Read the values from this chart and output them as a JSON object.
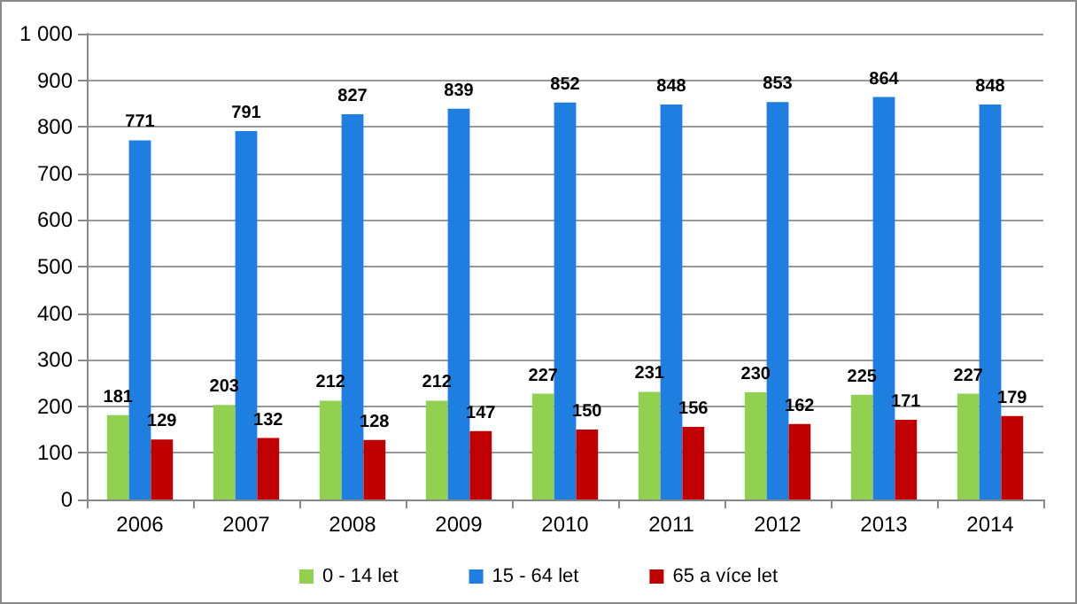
{
  "chart_data": {
    "type": "bar",
    "categories": [
      "2006",
      "2007",
      "2008",
      "2009",
      "2010",
      "2011",
      "2012",
      "2013",
      "2014"
    ],
    "series": [
      {
        "name": "0 - 14 let",
        "color": "#92d050",
        "values": [
          181,
          203,
          212,
          212,
          227,
          231,
          230,
          225,
          227
        ]
      },
      {
        "name": "15 - 64 let",
        "color": "#1e7fe0",
        "values": [
          771,
          791,
          827,
          839,
          852,
          848,
          853,
          864,
          848
        ]
      },
      {
        "name": "65 a více let",
        "color": "#c00000",
        "values": [
          129,
          132,
          128,
          147,
          150,
          156,
          162,
          171,
          179
        ]
      }
    ],
    "ylim": [
      0,
      1000
    ],
    "yticks": [
      0,
      100,
      200,
      300,
      400,
      500,
      600,
      700,
      800,
      900,
      {
        "value": 1000,
        "label": "1 000"
      }
    ],
    "grid": "y",
    "legend": "bottom",
    "data_labels": true
  }
}
